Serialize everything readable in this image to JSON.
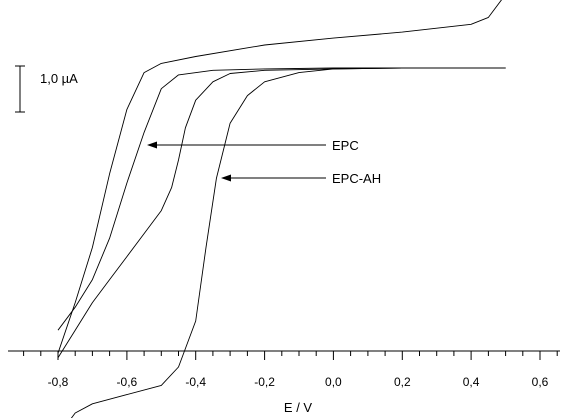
{
  "chart_data": {
    "type": "line",
    "xlabel": "E / V",
    "ylabel": "",
    "xlim": [
      -0.9,
      0.65
    ],
    "x_ticks": [
      "-0,8",
      "-0,6",
      "-0,4",
      "-0,2",
      "0,0",
      "0,2",
      "0,4",
      "0,6"
    ],
    "x_tick_values": [
      -0.8,
      -0.6,
      -0.4,
      -0.2,
      0.0,
      0.2,
      0.4,
      0.6
    ],
    "scale_bar": {
      "label": "1,0 µA",
      "value_uA": 1.0
    },
    "series": [
      {
        "name": "EPC",
        "forward": [
          [
            -0.8,
            -5.8
          ],
          [
            -0.75,
            -5.2
          ],
          [
            -0.7,
            -4.6
          ],
          [
            -0.65,
            -4.1
          ],
          [
            -0.6,
            -3.6
          ],
          [
            -0.55,
            -3.1
          ],
          [
            -0.5,
            -2.6
          ],
          [
            -0.47,
            -2.1
          ],
          [
            -0.45,
            -1.5
          ],
          [
            -0.43,
            -0.8
          ],
          [
            -0.4,
            -0.2
          ],
          [
            -0.35,
            0.2
          ],
          [
            -0.3,
            0.38
          ],
          [
            -0.2,
            0.45
          ],
          [
            0.0,
            0.48
          ],
          [
            0.2,
            0.5
          ],
          [
            0.5,
            0.5
          ]
        ],
        "reverse": [
          [
            0.5,
            0.5
          ],
          [
            0.2,
            0.5
          ],
          [
            0.0,
            0.5
          ],
          [
            -0.2,
            0.48
          ],
          [
            -0.35,
            0.45
          ],
          [
            -0.45,
            0.35
          ],
          [
            -0.5,
            0.05
          ],
          [
            -0.55,
            -0.9
          ],
          [
            -0.6,
            -2.0
          ],
          [
            -0.65,
            -3.2
          ],
          [
            -0.7,
            -4.1
          ],
          [
            -0.75,
            -4.7
          ],
          [
            -0.8,
            -5.2
          ]
        ]
      },
      {
        "name": "EPC-AH",
        "forward": [
          [
            -0.8,
            -7.5
          ],
          [
            -0.75,
            -7.0
          ],
          [
            -0.7,
            -6.8
          ],
          [
            -0.6,
            -6.6
          ],
          [
            -0.5,
            -6.4
          ],
          [
            -0.45,
            -6.0
          ],
          [
            -0.4,
            -5.0
          ],
          [
            -0.37,
            -3.4
          ],
          [
            -0.34,
            -1.9
          ],
          [
            -0.3,
            -0.7
          ],
          [
            -0.25,
            -0.1
          ],
          [
            -0.2,
            0.2
          ],
          [
            -0.1,
            0.4
          ],
          [
            0.0,
            0.48
          ],
          [
            0.2,
            0.5
          ],
          [
            0.5,
            0.5
          ]
        ],
        "reverse": [
          [
            0.5,
            2.1
          ],
          [
            0.45,
            1.6
          ],
          [
            0.4,
            1.45
          ],
          [
            0.2,
            1.28
          ],
          [
            0.0,
            1.15
          ],
          [
            -0.2,
            1.0
          ],
          [
            -0.4,
            0.75
          ],
          [
            -0.5,
            0.6
          ],
          [
            -0.55,
            0.4
          ],
          [
            -0.6,
            -0.4
          ],
          [
            -0.65,
            -1.8
          ],
          [
            -0.7,
            -3.4
          ],
          [
            -0.75,
            -4.6
          ],
          [
            -0.8,
            -5.7
          ]
        ]
      }
    ],
    "annotations": [
      {
        "text": "EPC",
        "series": "EPC"
      },
      {
        "text": "EPC-AH",
        "series": "EPC-AH"
      }
    ]
  }
}
